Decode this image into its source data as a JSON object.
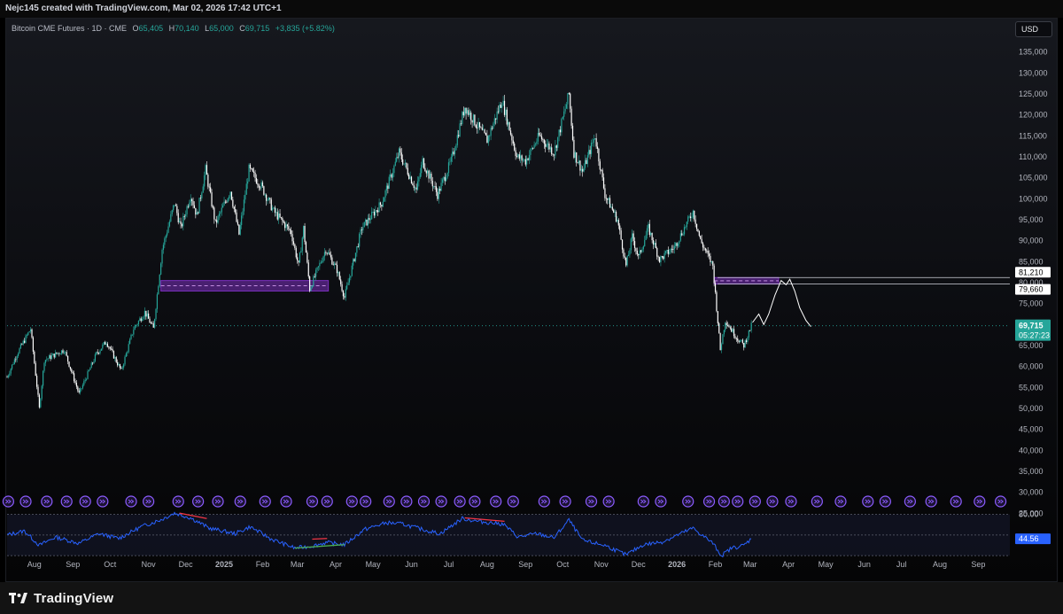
{
  "header": {
    "attribution": "Nejc145 created with TradingView.com, Mar 02, 2026 17:42 UTC+1"
  },
  "legend": {
    "symbol": "Bitcoin CME Futures · 1D · CME",
    "open_label": "O",
    "open": "65,405",
    "high_label": "H",
    "high": "70,140",
    "low_label": "L",
    "low": "65,000",
    "close_label": "C",
    "close": "69,715",
    "change": "+3,835 (+5.82%)"
  },
  "currency": "USD",
  "brand": {
    "name": "TradingView"
  },
  "colors": {
    "up": "#26a69a",
    "down": "#ffffff",
    "zone": "#7b2fbe",
    "rsi": "#2962ff",
    "price_badge": "#26a69a",
    "event": "#8c5cff",
    "divergence_bear": "#f23645",
    "divergence_bull": "#4caf50",
    "projection": "#ffffff"
  },
  "chart_data": [
    {
      "type": "candlestick",
      "title": "Bitcoin CME Futures · 1D · CME",
      "ylim": [
        20000,
        140000
      ],
      "y_ticks": [
        25000,
        30000,
        35000,
        40000,
        45000,
        50000,
        55000,
        60000,
        65000,
        70000,
        75000,
        80000,
        85000,
        90000,
        95000,
        100000,
        105000,
        110000,
        115000,
        120000,
        125000,
        130000,
        135000
      ],
      "y_tick_labels": [
        "25,000",
        "30,000",
        "35,000",
        "40,000",
        "45,000",
        "50,000",
        "55,000",
        "60,000",
        "65,000",
        "70,000",
        "75,000",
        "80,000",
        "85,000",
        "90,000",
        "95,000",
        "100,000",
        "105,000",
        "110,000",
        "115,000",
        "120,000",
        "125,000",
        "130,000",
        "135,000"
      ],
      "x_labels": [
        "Aug",
        "Sep",
        "Oct",
        "Nov",
        "Dec",
        "2025",
        "Feb",
        "Mar",
        "Apr",
        "May",
        "Jun",
        "Jul",
        "Aug",
        "Sep",
        "Oct",
        "Nov",
        "Dec",
        "2026",
        "Feb",
        "Mar",
        "Apr",
        "May",
        "Jun",
        "Jul",
        "Aug",
        "Sep"
      ],
      "x_label_dates": [
        "2024-08-01",
        "2024-09-01",
        "2024-10-01",
        "2024-11-01",
        "2024-12-01",
        "2025-01-01",
        "2025-02-01",
        "2025-03-01",
        "2025-04-01",
        "2025-05-01",
        "2025-06-01",
        "2025-07-01",
        "2025-08-01",
        "2025-09-01",
        "2025-10-01",
        "2025-11-01",
        "2025-12-01",
        "2026-01-01",
        "2026-02-01",
        "2026-03-01",
        "2026-04-01",
        "2026-05-01",
        "2026-06-01",
        "2026-07-01",
        "2026-08-01",
        "2026-09-01"
      ],
      "x_label_bold": [
        "2025",
        "2026"
      ],
      "x_range": [
        "2024-07-10",
        "2026-09-25"
      ],
      "price_path": [
        [
          "2024-07-10",
          57500
        ],
        [
          "2024-07-18",
          63000
        ],
        [
          "2024-07-29",
          69000
        ],
        [
          "2024-08-05",
          50000
        ],
        [
          "2024-08-09",
          61500
        ],
        [
          "2024-08-25",
          64000
        ],
        [
          "2024-09-06",
          53500
        ],
        [
          "2024-09-20",
          63000
        ],
        [
          "2024-09-28",
          66000
        ],
        [
          "2024-10-10",
          59000
        ],
        [
          "2024-10-20",
          69000
        ],
        [
          "2024-10-29",
          73000
        ],
        [
          "2024-11-05",
          69000
        ],
        [
          "2024-11-12",
          88000
        ],
        [
          "2024-11-22",
          99000
        ],
        [
          "2024-11-27",
          93000
        ],
        [
          "2024-12-05",
          101000
        ],
        [
          "2024-12-10",
          96000
        ],
        [
          "2024-12-17",
          107000
        ],
        [
          "2024-12-25",
          94000
        ],
        [
          "2025-01-06",
          102000
        ],
        [
          "2025-01-13",
          91500
        ],
        [
          "2025-01-21",
          107000
        ],
        [
          "2025-01-31",
          103000
        ],
        [
          "2025-02-10",
          97000
        ],
        [
          "2025-02-24",
          92000
        ],
        [
          "2025-03-02",
          84000
        ],
        [
          "2025-03-06",
          93000
        ],
        [
          "2025-03-11",
          78500
        ],
        [
          "2025-03-24",
          88000
        ],
        [
          "2025-04-02",
          83000
        ],
        [
          "2025-04-08",
          76500
        ],
        [
          "2025-04-22",
          93000
        ],
        [
          "2025-05-08",
          99000
        ],
        [
          "2025-05-22",
          111000
        ],
        [
          "2025-06-05",
          102000
        ],
        [
          "2025-06-10",
          109000
        ],
        [
          "2025-06-22",
          101000
        ],
        [
          "2025-07-03",
          109000
        ],
        [
          "2025-07-14",
          122000
        ],
        [
          "2025-07-25",
          117000
        ],
        [
          "2025-08-01",
          114000
        ],
        [
          "2025-08-13",
          123500
        ],
        [
          "2025-08-25",
          110000
        ],
        [
          "2025-09-01",
          109000
        ],
        [
          "2025-09-12",
          115000
        ],
        [
          "2025-09-24",
          111000
        ],
        [
          "2025-10-06",
          125000
        ],
        [
          "2025-10-10",
          111000
        ],
        [
          "2025-10-17",
          106500
        ],
        [
          "2025-10-27",
          115000
        ],
        [
          "2025-11-04",
          101000
        ],
        [
          "2025-11-14",
          95000
        ],
        [
          "2025-11-21",
          84000
        ],
        [
          "2025-11-26",
          91000
        ],
        [
          "2025-12-01",
          86000
        ],
        [
          "2025-12-09",
          93000
        ],
        [
          "2025-12-18",
          85500
        ],
        [
          "2025-12-30",
          88500
        ],
        [
          "2026-01-14",
          97000
        ],
        [
          "2026-01-20",
          90000
        ],
        [
          "2026-01-30",
          84000
        ],
        [
          "2026-02-05",
          64000
        ],
        [
          "2026-02-09",
          71000
        ],
        [
          "2026-02-18",
          67000
        ],
        [
          "2026-02-24",
          65000
        ],
        [
          "2026-03-02",
          69715
        ]
      ],
      "zones": [
        {
          "from": "2024-11-11",
          "to": "2025-03-26",
          "low": 78000,
          "high": 80500
        },
        {
          "from": "2026-01-31",
          "to": "2026-03-24",
          "low": 79660,
          "high": 81210
        }
      ],
      "horizontal_lines": [
        81210,
        79660
      ],
      "price_labels": [
        {
          "value": 81210,
          "text": "81,210"
        },
        {
          "value": 79660,
          "text": "79,660"
        }
      ],
      "last_price": {
        "value": 69715,
        "text": "69,715",
        "countdown": "05:27:23"
      },
      "projection_path": [
        [
          "2026-03-03",
          70500
        ],
        [
          "2026-03-08",
          72500
        ],
        [
          "2026-03-12",
          70000
        ],
        [
          "2026-03-16",
          72500
        ],
        [
          "2026-03-21",
          77000
        ],
        [
          "2026-03-26",
          80500
        ],
        [
          "2026-03-30",
          79500
        ],
        [
          "2026-04-02",
          80800
        ],
        [
          "2026-04-06",
          78000
        ],
        [
          "2026-04-10",
          74000
        ],
        [
          "2026-04-15",
          71000
        ],
        [
          "2026-04-19",
          69500
        ]
      ],
      "event_markers": [
        "2024-07-11",
        "2024-07-25",
        "2024-08-11",
        "2024-08-27",
        "2024-09-11",
        "2024-09-25",
        "2024-10-18",
        "2024-11-01",
        "2024-11-25",
        "2024-12-11",
        "2024-12-27",
        "2025-01-14",
        "2025-02-03",
        "2025-02-20",
        "2025-03-13",
        "2025-03-25",
        "2025-04-14",
        "2025-04-25",
        "2025-05-14",
        "2025-05-28",
        "2025-06-11",
        "2025-06-25",
        "2025-07-10",
        "2025-07-22",
        "2025-08-08",
        "2025-08-22",
        "2025-09-16",
        "2025-10-03",
        "2025-10-24",
        "2025-11-07",
        "2025-12-05",
        "2025-12-19",
        "2026-01-10",
        "2026-01-27",
        "2026-02-08",
        "2026-02-19",
        "2026-03-05",
        "2026-03-19",
        "2026-04-03",
        "2026-04-24",
        "2026-05-13",
        "2026-06-04",
        "2026-06-18",
        "2026-07-08",
        "2026-07-25",
        "2026-08-14",
        "2026-09-02",
        "2026-09-19"
      ]
    },
    {
      "type": "line",
      "title": "",
      "ylim": [
        15,
        95
      ],
      "levels": [
        80,
        50,
        20
      ],
      "level_labels": [
        "80.00"
      ],
      "last_value": {
        "value": 44.56,
        "text": "44.56"
      },
      "series": [
        {
          "values_path": [
            [
              "2024-07-10",
              50
            ],
            [
              "2024-07-24",
              56
            ],
            [
              "2024-08-05",
              35
            ],
            [
              "2024-08-18",
              47
            ],
            [
              "2024-09-06",
              38
            ],
            [
              "2024-09-22",
              52
            ],
            [
              "2024-10-08",
              45
            ],
            [
              "2024-10-26",
              62
            ],
            [
              "2024-11-12",
              73
            ],
            [
              "2024-11-22",
              82
            ],
            [
              "2024-12-05",
              75
            ],
            [
              "2024-12-20",
              60
            ],
            [
              "2025-01-10",
              52
            ],
            [
              "2025-01-22",
              62
            ],
            [
              "2025-02-08",
              44
            ],
            [
              "2025-02-27",
              31
            ],
            [
              "2025-03-13",
              34
            ],
            [
              "2025-03-24",
              39
            ],
            [
              "2025-04-08",
              36
            ],
            [
              "2025-04-24",
              58
            ],
            [
              "2025-05-12",
              68
            ],
            [
              "2025-05-25",
              66
            ],
            [
              "2025-06-10",
              58
            ],
            [
              "2025-06-24",
              52
            ],
            [
              "2025-07-12",
              74
            ],
            [
              "2025-07-24",
              70
            ],
            [
              "2025-08-14",
              66
            ],
            [
              "2025-08-26",
              47
            ],
            [
              "2025-09-10",
              52
            ],
            [
              "2025-09-24",
              46
            ],
            [
              "2025-10-06",
              72
            ],
            [
              "2025-10-17",
              42
            ],
            [
              "2025-11-04",
              35
            ],
            [
              "2025-11-21",
              21
            ],
            [
              "2025-12-05",
              36
            ],
            [
              "2025-12-20",
              40
            ],
            [
              "2026-01-14",
              60
            ],
            [
              "2026-01-30",
              38
            ],
            [
              "2026-02-06",
              20
            ],
            [
              "2026-02-14",
              31
            ],
            [
              "2026-02-24",
              35
            ],
            [
              "2026-03-02",
              44.56
            ]
          ]
        }
      ],
      "divergences": [
        {
          "kind": "bearish",
          "from": [
            "2024-11-26",
            82
          ],
          "to": [
            "2024-12-18",
            74
          ]
        },
        {
          "kind": "bullish",
          "from": [
            "2025-02-27",
            31
          ],
          "to": [
            "2025-04-08",
            36
          ]
        },
        {
          "kind": "bearish",
          "from": [
            "2025-03-13",
            44
          ],
          "to": [
            "2025-03-25",
            45
          ]
        },
        {
          "kind": "bearish",
          "from": [
            "2025-07-14",
            75
          ],
          "to": [
            "2025-08-15",
            70
          ]
        }
      ]
    }
  ]
}
